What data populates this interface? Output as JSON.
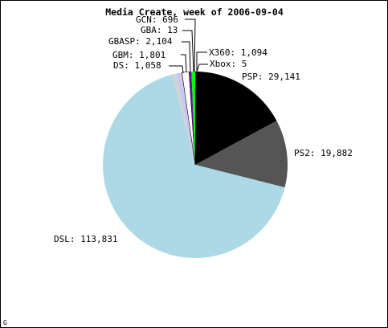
{
  "chart_data": {
    "type": "pie",
    "title": "Media Create, week of 2006-09-04",
    "slices": [
      {
        "name": "Xbox",
        "label": "Xbox: 5",
        "value": 5,
        "color": "#000000"
      },
      {
        "name": "PSP",
        "label": "PSP: 29,141",
        "value": 29141,
        "color": "#000000"
      },
      {
        "name": "PS2",
        "label": "PS2: 19,882",
        "value": 19882,
        "color": "#555555"
      },
      {
        "name": "DSL",
        "label": "DSL: 113,831",
        "value": 113831,
        "color": "#add8e6"
      },
      {
        "name": "DS",
        "label": "DS: 1,058",
        "value": 1058,
        "color": "#d3d3d3"
      },
      {
        "name": "GBM",
        "label": "GBM: 1,801",
        "value": 1801,
        "color": "#c8c8f0"
      },
      {
        "name": "GBASP",
        "label": "GBASP: 2,104",
        "value": 2104,
        "color": "#ffffff"
      },
      {
        "name": "GBA",
        "label": "GBA: 13",
        "value": 13,
        "color": "#ffffff"
      },
      {
        "name": "GCN",
        "label": "GCN: 696",
        "value": 696,
        "color": "#6a0dad"
      },
      {
        "name": "X360",
        "label": "X360: 1,094",
        "value": 1094,
        "color": "#00ff00"
      }
    ]
  },
  "corner_mark": "G"
}
